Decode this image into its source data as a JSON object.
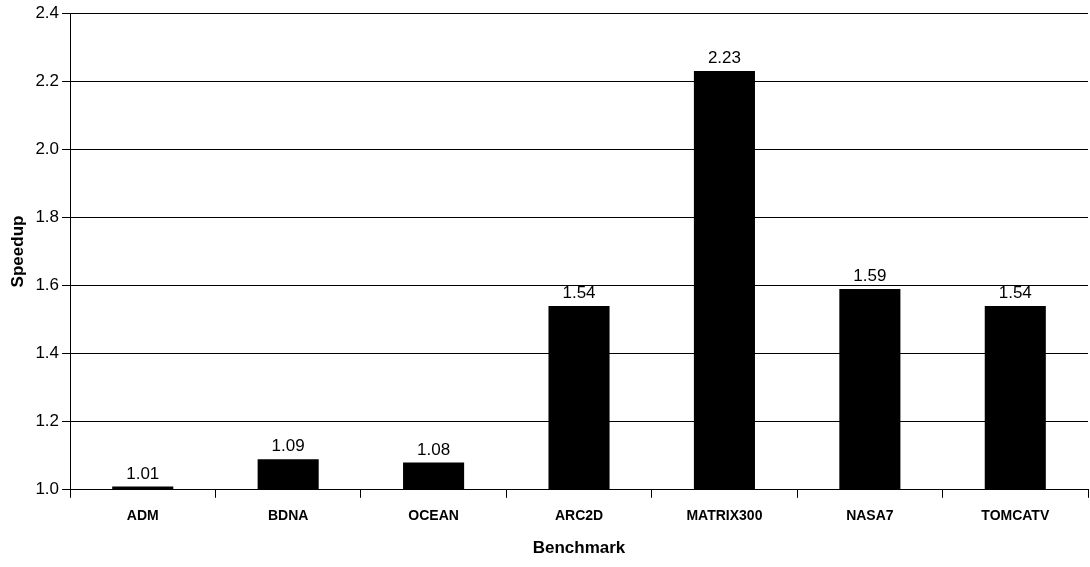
{
  "chart_data": {
    "type": "bar",
    "xlabel": "Benchmark",
    "ylabel": "Speedup",
    "categories": [
      "ADM",
      "BDNA",
      "OCEAN",
      "ARC2D",
      "MATRIX300",
      "NASA7",
      "TOMCATV"
    ],
    "values": [
      1.01,
      1.09,
      1.08,
      1.54,
      2.23,
      1.59,
      1.54
    ],
    "color": "#000000",
    "ylim": [
      1.0,
      2.4
    ],
    "yticks": [
      {
        "value": 1.0,
        "label": "1.0"
      },
      {
        "value": 1.2,
        "label": "1.2"
      },
      {
        "value": 1.4,
        "label": "1.4"
      },
      {
        "value": 1.6,
        "label": "1.6"
      },
      {
        "value": 1.8,
        "label": "1.8"
      },
      {
        "value": 2.0,
        "label": "2.0"
      },
      {
        "value": 2.2,
        "label": "2.2"
      },
      {
        "value": 2.4,
        "label": "2.4"
      }
    ],
    "grid": "y",
    "data_labels": true,
    "legend": false
  }
}
